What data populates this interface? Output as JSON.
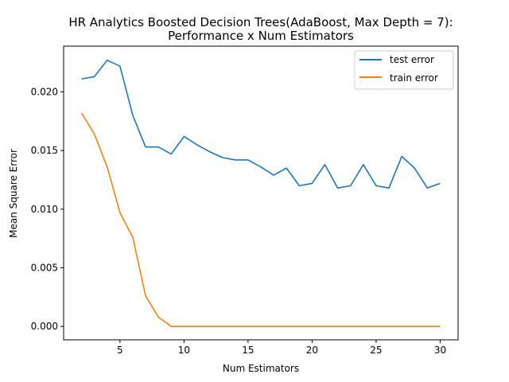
{
  "chart_data": {
    "type": "line",
    "title_line1": "HR Analytics Boosted Decision Trees(AdaBoost, Max Depth = 7):",
    "title_line2": "Performance x Num Estimators",
    "xlabel": "Num Estimators",
    "ylabel": "Mean Square Error",
    "xlim": [
      0.6,
      31.4
    ],
    "ylim": [
      -0.00114,
      0.0239
    ],
    "xticks": [
      5,
      10,
      15,
      20,
      25,
      30
    ],
    "xtick_labels": [
      "5",
      "10",
      "15",
      "20",
      "25",
      "30"
    ],
    "yticks": [
      0.0,
      0.005,
      0.01,
      0.015,
      0.02
    ],
    "ytick_labels": [
      "0.000",
      "0.005",
      "0.010",
      "0.015",
      "0.020"
    ],
    "grid": false,
    "legend_position": "top-right",
    "x": [
      2,
      3,
      4,
      5,
      6,
      7,
      8,
      9,
      10,
      11,
      12,
      13,
      14,
      15,
      16,
      17,
      18,
      19,
      20,
      21,
      22,
      23,
      24,
      25,
      26,
      27,
      28,
      29,
      30
    ],
    "series": [
      {
        "name": "test error",
        "color": "#1f77b4",
        "values": [
          0.0211,
          0.0213,
          0.0227,
          0.0222,
          0.018,
          0.0153,
          0.0153,
          0.0147,
          0.0162,
          0.0155,
          0.0149,
          0.0144,
          0.0142,
          0.0142,
          0.0136,
          0.0129,
          0.0135,
          0.012,
          0.0122,
          0.0138,
          0.0118,
          0.012,
          0.0138,
          0.012,
          0.0118,
          0.0145,
          0.0135,
          0.0118,
          0.0122
        ]
      },
      {
        "name": "train error",
        "color": "#ff7f0e",
        "values": [
          0.0182,
          0.0164,
          0.0136,
          0.0097,
          0.0076,
          0.0026,
          0.0008,
          0.0,
          0.0,
          0.0,
          0.0,
          0.0,
          0.0,
          0.0,
          0.0,
          0.0,
          0.0,
          0.0,
          0.0,
          0.0,
          0.0,
          0.0,
          0.0,
          0.0,
          0.0,
          0.0,
          0.0,
          0.0,
          0.0
        ]
      }
    ]
  }
}
